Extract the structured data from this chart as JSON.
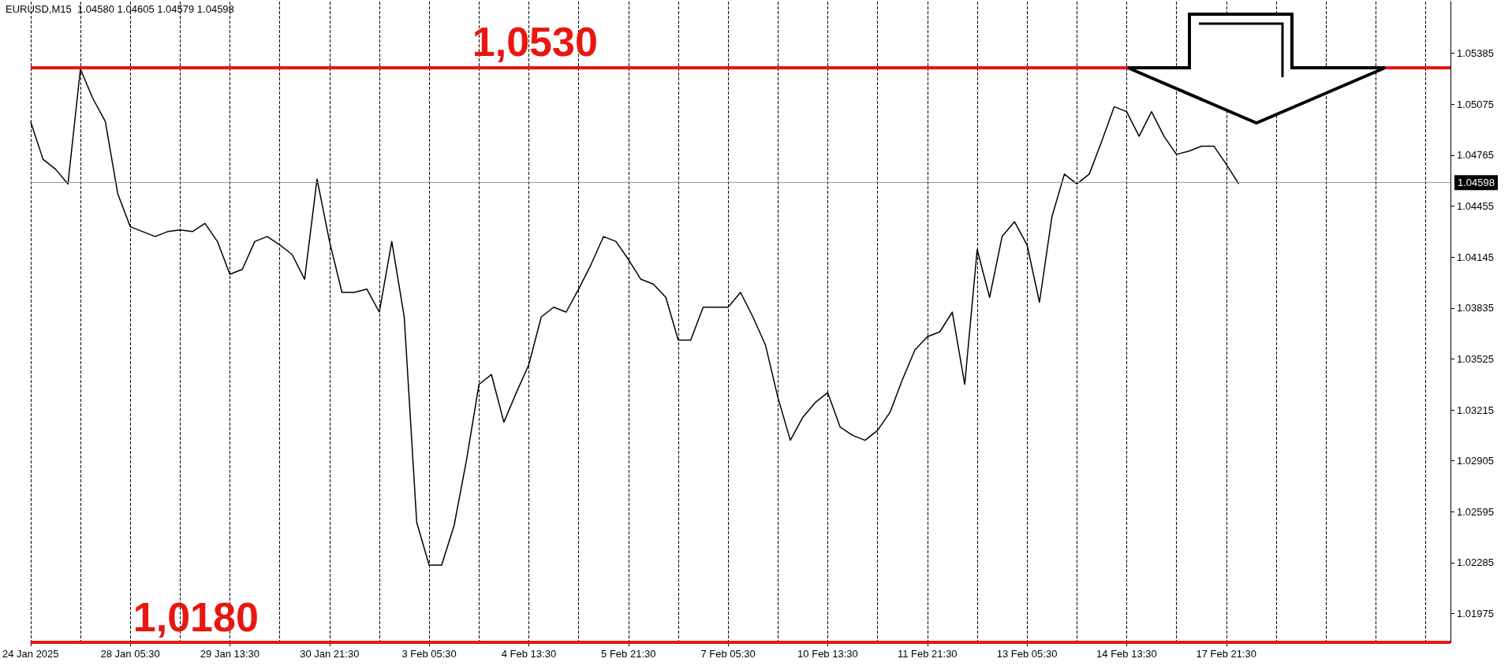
{
  "chart_data": {
    "type": "line",
    "title": "EURUSD,M15  1.04580 1.04605 1.04579 1.04598",
    "categories": [
      "24 Jan 2025",
      null,
      null,
      null,
      null,
      null,
      null,
      null,
      "28 Jan 05:30",
      null,
      null,
      null,
      null,
      null,
      null,
      null,
      "29 Jan 13:30",
      null,
      null,
      null,
      null,
      null,
      null,
      null,
      "30 Jan 21:30",
      null,
      null,
      null,
      null,
      null,
      null,
      null,
      "3 Feb 05:30",
      null,
      null,
      null,
      null,
      null,
      null,
      null,
      "4 Feb 13:30",
      null,
      null,
      null,
      null,
      null,
      null,
      null,
      "5 Feb 21:30",
      null,
      null,
      null,
      null,
      null,
      null,
      null,
      "7 Feb 05:30",
      null,
      null,
      null,
      null,
      null,
      null,
      null,
      "10 Feb 13:30",
      null,
      null,
      null,
      null,
      null,
      null,
      null,
      "11 Feb 21:30",
      null,
      null,
      null,
      null,
      null,
      null,
      null,
      "13 Feb 05:30",
      null,
      null,
      null,
      null,
      null,
      null,
      null,
      "14 Feb 13:30",
      null,
      null,
      null,
      null,
      null,
      null,
      null,
      "17 Feb 21:30",
      null,
      null,
      null,
      null,
      null,
      null,
      null,
      null,
      null,
      null,
      null,
      null,
      null,
      null,
      null,
      null,
      null,
      null
    ],
    "series": [
      {
        "color": "#000000",
        "values": [
          1.0497,
          1.0474,
          1.0468,
          1.0459,
          1.0529,
          1.0511,
          1.0497,
          1.0453,
          1.0433,
          1.043,
          1.0427,
          1.043,
          1.0431,
          1.043,
          1.0435,
          1.0424,
          1.0404,
          1.0407,
          1.0424,
          1.0427,
          1.0422,
          1.0416,
          1.0401,
          1.0462,
          1.0424,
          1.0393,
          1.0393,
          1.0395,
          1.0381,
          1.0424,
          1.0378,
          1.0253,
          1.0227,
          1.0227,
          1.0251,
          1.0291,
          1.0337,
          1.0343,
          1.0314,
          1.0332,
          1.0349,
          1.0378,
          1.0384,
          1.0381,
          1.0395,
          1.041,
          1.0427,
          1.0424,
          1.0413,
          1.0401,
          1.0398,
          1.039,
          1.0364,
          1.0364,
          1.0384,
          1.0384,
          1.0384,
          1.0393,
          1.0378,
          1.0361,
          1.0329,
          1.0303,
          1.0317,
          1.0326,
          1.0332,
          1.0311,
          1.0306,
          1.0303,
          1.0309,
          1.032,
          1.034,
          1.0358,
          1.0366,
          1.0369,
          1.0381,
          1.0337,
          1.0419,
          1.039,
          1.0427,
          1.0436,
          1.0422,
          1.0387,
          1.0439,
          1.0465,
          1.0459,
          1.0465,
          1.0485,
          1.0506,
          1.0503,
          1.0488,
          1.0503,
          1.0488,
          1.0477,
          1.0479,
          1.0482,
          1.0482,
          1.0471,
          1.0459,
          null,
          null,
          null,
          null,
          null,
          null,
          null,
          null,
          null,
          null,
          null,
          null,
          null,
          null,
          null,
          null,
          null
        ]
      }
    ],
    "ylim": [
      1.018,
      1.057
    ],
    "yticks": [
      1.01975,
      1.02285,
      1.02595,
      1.02905,
      1.03215,
      1.03525,
      1.03835,
      1.04145,
      1.04455,
      1.04765,
      1.05075,
      1.05385
    ],
    "ref_lines": [
      {
        "axis": "y",
        "value": 1.053,
        "label": "1,0530",
        "color": "#e8170f"
      },
      {
        "axis": "y",
        "value": 1.018,
        "label": "1,0180",
        "color": "#e8170f"
      },
      {
        "axis": "y",
        "value": 1.04598,
        "label": "1.04598",
        "color": "#999999"
      }
    ],
    "grid": "x",
    "marker": "none",
    "line_style": "solid"
  }
}
